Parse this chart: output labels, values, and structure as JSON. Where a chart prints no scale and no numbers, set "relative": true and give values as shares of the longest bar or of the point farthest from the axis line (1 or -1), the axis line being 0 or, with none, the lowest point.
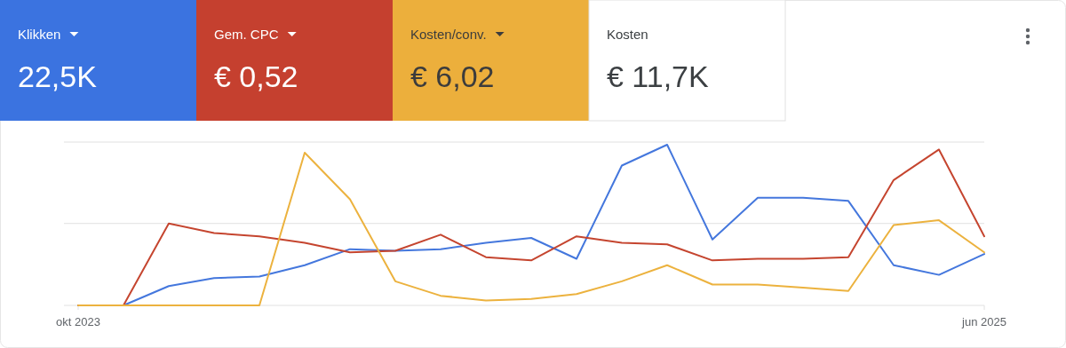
{
  "chart_data": [
    {
      "type": "other",
      "categories": [
        "Klikken",
        "Gem. CPC",
        "Kosten/conv.",
        "Kosten"
      ],
      "value_labels": [
        "22,5K",
        "€ 0,52",
        "€ 6,02",
        "€ 11,7K"
      ],
      "colors": [
        "#3b73e0",
        "#c5402f",
        "#ecaf3c",
        "#ffffff"
      ]
    },
    {
      "type": "line",
      "relative": true,
      "ref_lines": [
        {
          "axis": "y",
          "value": 0.51,
          "color": "#e0e0e0"
        }
      ],
      "categories": [
        "okt 2023",
        null,
        null,
        null,
        null,
        null,
        null,
        null,
        null,
        null,
        null,
        null,
        null,
        null,
        null,
        null,
        null,
        null,
        null,
        null,
        "jun 2025"
      ],
      "series": [
        {
          "color": "#4477dd",
          "values": [
            0,
            0,
            0.12,
            0.17,
            0.18,
            0.25,
            0.35,
            0.34,
            0.35,
            0.39,
            0.42,
            0.29,
            0.87,
            1,
            0.41,
            0.67,
            0.67,
            0.65,
            0.25,
            0.19,
            0.32
          ]
        },
        {
          "color": "#c5452f",
          "values": [
            0,
            0,
            0.51,
            0.45,
            0.43,
            0.39,
            0.33,
            0.34,
            0.44,
            0.3,
            0.28,
            0.43,
            0.39,
            0.38,
            0.28,
            0.29,
            0.29,
            0.3,
            0.78,
            0.97,
            0.43
          ]
        },
        {
          "color": "#ecb23e",
          "values": [
            0,
            0,
            0,
            0,
            0,
            0.95,
            0.66,
            0.15,
            0.06,
            0.03,
            0.04,
            0.07,
            0.15,
            0.25,
            0.13,
            0.13,
            0.11,
            0.09,
            0.5,
            0.53,
            0.33
          ]
        }
      ]
    }
  ]
}
